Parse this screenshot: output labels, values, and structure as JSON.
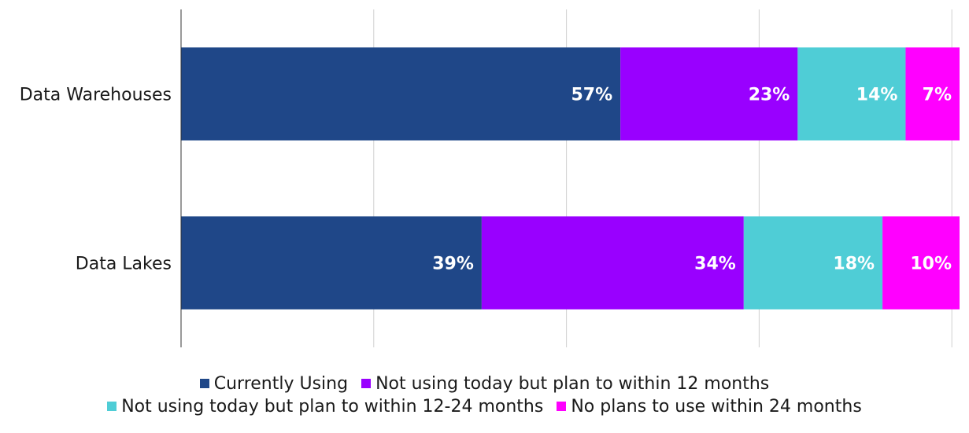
{
  "chart_data": {
    "type": "bar",
    "orientation": "horizontal",
    "stacked": true,
    "categories": [
      "Data Warehouses",
      "Data Lakes"
    ],
    "series": [
      {
        "name": "Currently Using",
        "values": [
          57,
          39
        ],
        "labels": [
          "57%",
          "39%"
        ],
        "color": "#1F4788"
      },
      {
        "name": "Not using today but plan to within 12 months",
        "values": [
          23,
          34
        ],
        "labels": [
          "23%",
          "34%"
        ],
        "color": "#9900FF"
      },
      {
        "name": "Not using today but plan to within 12-24 months",
        "values": [
          14,
          18
        ],
        "labels": [
          "14%",
          "18%"
        ],
        "color": "#4FCDD6"
      },
      {
        "name": "No plans to use within 24 months",
        "values": [
          7,
          10
        ],
        "labels": [
          "7%",
          "10%"
        ],
        "color": "#FF00FF"
      }
    ],
    "xlim": [
      0,
      101
    ],
    "grid": true,
    "legend_position": "bottom"
  }
}
